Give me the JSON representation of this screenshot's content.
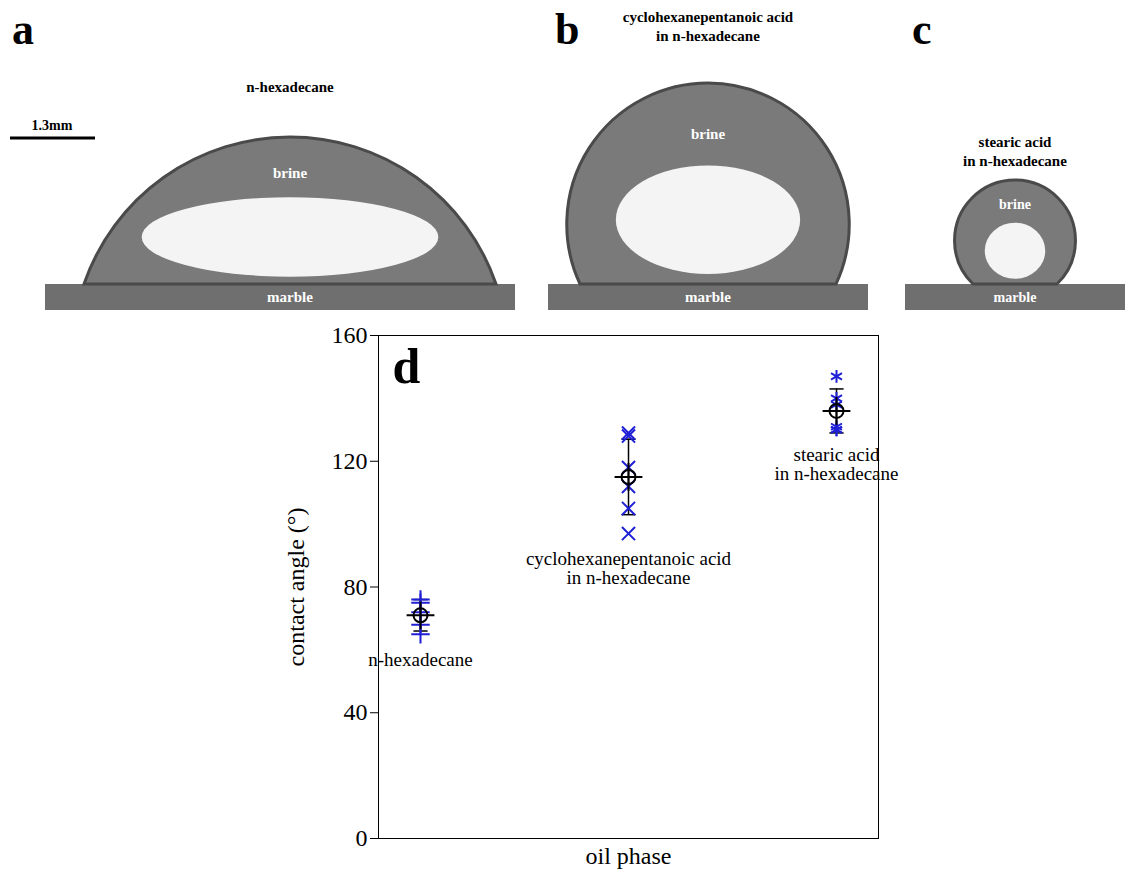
{
  "panels": [
    {
      "letter": "a",
      "title": "n-hexadecane",
      "labels": [
        "brine",
        "marble"
      ]
    },
    {
      "letter": "b",
      "title": "cyclohexanepentanoic acid\nin n-hexadecane",
      "labels": [
        "brine",
        "marble"
      ]
    },
    {
      "letter": "c",
      "title": "stearic acid\nin n-hexadecane",
      "labels": [
        "brine",
        "marble"
      ]
    }
  ],
  "scale_bar": "1.3mm",
  "chart_data": {
    "type": "scatter",
    "letter": "d",
    "x_label": "oil phase",
    "y_label": "contact angle (°)",
    "categories": [
      "n-hexadecane",
      "cyclohexanepentanoic acid\nin n-hexadecane",
      "stearic acid\nin n-hexadecane"
    ],
    "measurements": [
      {
        "marker": "plus",
        "color": "#1f1fd6",
        "values": [
          76,
          75,
          72,
          68,
          65
        ]
      },
      {
        "marker": "times",
        "color": "#1f1fd6",
        "values": [
          129,
          128,
          118,
          112,
          105,
          97
        ]
      },
      {
        "marker": "asterisk",
        "color": "#1f1fd6",
        "values": [
          147,
          140,
          138,
          131,
          130,
          130
        ]
      }
    ],
    "values": [
      71,
      115,
      136
    ],
    "error": [
      5,
      12,
      7
    ],
    "color": "#000000",
    "marker": "circle-plus",
    "ylim": [
      0,
      160
    ],
    "yticks": [
      0,
      40,
      80,
      120,
      160
    ],
    "tick_labels": "y"
  }
}
